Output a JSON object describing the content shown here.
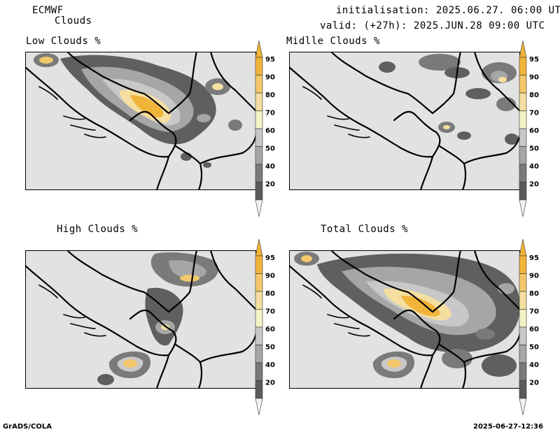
{
  "header": {
    "model": "ECMWF",
    "product": "Clouds",
    "init_line": "initialisation: 2025.06.27. 06:00 UTC",
    "valid_line": "valid: (+27h): 2025.JUN.28 09:00 UTC"
  },
  "panels": [
    {
      "title": "Low Clouds %"
    },
    {
      "title": "Midlle Clouds %"
    },
    {
      "title": "High Clouds %"
    },
    {
      "title": "Total Clouds %"
    }
  ],
  "colorbar": {
    "labels": [
      "95",
      "90",
      "80",
      "70",
      "60",
      "50",
      "40",
      "20"
    ],
    "colors": [
      "#f0b43a",
      "#f2c86a",
      "#f4dea0",
      "#f3f3c6",
      "#c8c8c8",
      "#a6a6a6",
      "#7a7a7a",
      "#5a5a5a"
    ]
  },
  "footer": {
    "left": "GrADS/COLA",
    "right": "2025-06-27-12:36"
  },
  "chart_data": {
    "type": "heatmap",
    "title": "Clouds",
    "units": "%",
    "levels": [
      20,
      40,
      50,
      60,
      70,
      80,
      90,
      95
    ],
    "panels": [
      "Low Clouds %",
      "Midlle Clouds %",
      "High Clouds %",
      "Total Clouds %"
    ]
  }
}
